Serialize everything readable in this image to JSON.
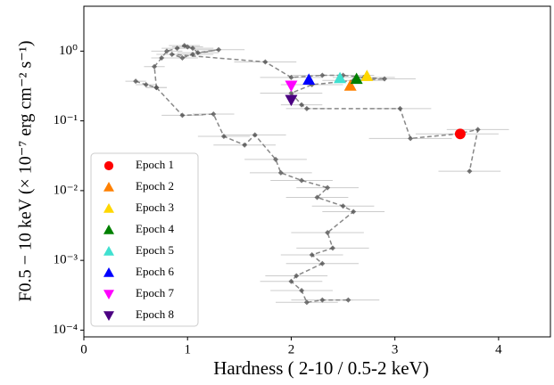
{
  "chart_data": {
    "type": "scatter",
    "xlabel": "Hardness ( 2-10 / 0.5-2 keV)",
    "ylabel": "F0.5 − 10 keV (× 10⁻⁷ erg cm⁻² s⁻¹)",
    "xlim": [
      0,
      4.5
    ],
    "ylim": [
      8e-05,
      4.4
    ],
    "yscale": "log",
    "xticks": [
      0,
      1,
      2,
      3,
      4
    ],
    "yticks": [
      {
        "value": 0.0001,
        "label": "10⁻⁴"
      },
      {
        "value": 0.001,
        "label": "10⁻³"
      },
      {
        "value": 0.01,
        "label": "10⁻²"
      },
      {
        "value": 0.1,
        "label": "10⁻¹"
      },
      {
        "value": 1,
        "label": "10⁰"
      }
    ],
    "legend": "lower left",
    "track": {
      "color": "#555555",
      "x": [
        0.5,
        0.6,
        0.7,
        0.68,
        0.75,
        0.8,
        0.9,
        0.97,
        1.0,
        1.05,
        1.1,
        1.3,
        1.05,
        0.95,
        0.85,
        1.75,
        2.0,
        2.3,
        2.5,
        2.7,
        2.9,
        2.6,
        2.2,
        2.0,
        2.1,
        2.15,
        3.05,
        3.15,
        3.6,
        3.8,
        3.72,
        null,
        0.7,
        0.95,
        1.25,
        1.35,
        1.55,
        1.65,
        1.85,
        1.9,
        2.1,
        2.35,
        2.25,
        2.5,
        2.6,
        2.35,
        2.4,
        2.2,
        2.3,
        2.05,
        2.0,
        2.1,
        2.15,
        2.3,
        2.55
      ],
      "y": [
        0.37,
        0.33,
        0.3,
        0.6,
        0.8,
        1.0,
        1.1,
        1.2,
        1.15,
        1.1,
        0.95,
        1.05,
        0.9,
        0.8,
        0.9,
        0.7,
        0.42,
        0.45,
        0.45,
        0.42,
        0.4,
        0.38,
        0.33,
        0.25,
        0.17,
        0.15,
        0.15,
        0.056,
        0.065,
        0.075,
        0.019,
        null,
        0.3,
        0.12,
        0.125,
        0.06,
        0.045,
        0.063,
        0.028,
        0.018,
        0.014,
        0.011,
        0.008,
        0.006,
        0.005,
        0.0025,
        0.0015,
        0.0012,
        0.0009,
        0.0006,
        0.0005,
        0.00037,
        0.00025,
        0.00027,
        0.00027
      ],
      "xerr": [
        0.1,
        0.1,
        0.1,
        0.1,
        0.1,
        0.15,
        0.15,
        0.15,
        0.15,
        0.2,
        0.2,
        0.25,
        0.2,
        0.15,
        0.15,
        0.3,
        0.3,
        0.3,
        0.3,
        0.3,
        0.3,
        0.3,
        0.3,
        0.3,
        0.2,
        0.2,
        0.3,
        0.4,
        0.4,
        0.3,
        0.3,
        null,
        0.1,
        0.2,
        0.2,
        0.25,
        0.3,
        0.3,
        0.3,
        0.3,
        0.3,
        0.3,
        0.3,
        0.3,
        0.3,
        0.35,
        0.35,
        0.3,
        0.35,
        0.3,
        0.3,
        0.3,
        0.3,
        0.3,
        0.3
      ]
    },
    "series": [
      {
        "name": "Epoch 1",
        "color": "#ff0000",
        "marker": "circle",
        "x": [
          3.63
        ],
        "values": [
          0.065
        ]
      },
      {
        "name": "Epoch 2",
        "color": "#ff8000",
        "marker": "up",
        "x": [
          2.57
        ],
        "values": [
          0.32
        ]
      },
      {
        "name": "Epoch 3",
        "color": "#ffd700",
        "marker": "up",
        "x": [
          2.73
        ],
        "values": [
          0.44
        ]
      },
      {
        "name": "Epoch 4",
        "color": "#008000",
        "marker": "up",
        "x": [
          2.63
        ],
        "values": [
          0.4
        ]
      },
      {
        "name": "Epoch 5",
        "color": "#40e0d0",
        "marker": "up",
        "x": [
          2.47
        ],
        "values": [
          0.41
        ]
      },
      {
        "name": "Epoch 6",
        "color": "#0000ff",
        "marker": "up",
        "x": [
          2.17
        ],
        "values": [
          0.39
        ]
      },
      {
        "name": "Epoch 7",
        "color": "#ff00ff",
        "marker": "down",
        "x": [
          2.0
        ],
        "values": [
          0.32
        ]
      },
      {
        "name": "Epoch 8",
        "color": "#4b0082",
        "marker": "down",
        "x": [
          2.0
        ],
        "values": [
          0.2
        ]
      }
    ]
  }
}
